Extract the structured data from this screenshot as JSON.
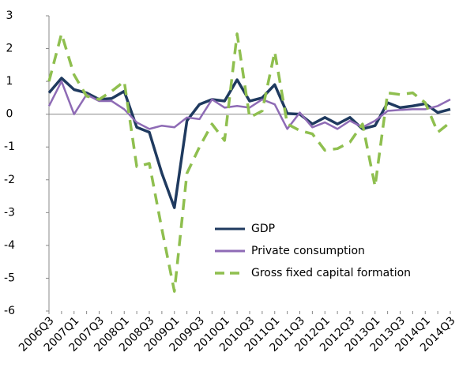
{
  "chart_data": {
    "type": "line",
    "categories": [
      "2006Q3",
      null,
      "2007Q1",
      null,
      "2007Q3",
      null,
      "2008Q1",
      null,
      "2008Q3",
      null,
      "2009Q1",
      null,
      "2009Q3",
      null,
      "2010Q1",
      null,
      "2010Q3",
      null,
      "2011Q1",
      null,
      "2011Q3",
      null,
      "2012Q1",
      null,
      "2012Q3",
      null,
      "2013Q1",
      null,
      "2013Q3",
      null,
      "2014Q1",
      null,
      "2014Q3"
    ],
    "series": [
      {
        "name": "GDP",
        "color": "#1f3a5f",
        "style": "solid",
        "values": [
          0.65,
          1.1,
          0.75,
          0.65,
          0.45,
          0.48,
          0.7,
          -0.4,
          -0.55,
          -1.8,
          -2.85,
          -0.2,
          0.3,
          0.45,
          0.4,
          1.05,
          0.4,
          0.5,
          0.9,
          0.02,
          0.0,
          -0.3,
          -0.1,
          -0.3,
          -0.1,
          -0.45,
          -0.35,
          0.35,
          0.2,
          0.25,
          0.32,
          0.05,
          0.15
        ]
      },
      {
        "name": "Private consumption",
        "color": "#8e6bb5",
        "style": "solid",
        "values": [
          0.25,
          1.0,
          0.0,
          0.6,
          0.4,
          0.4,
          0.15,
          -0.25,
          -0.45,
          -0.35,
          -0.4,
          -0.1,
          -0.15,
          0.45,
          0.2,
          0.25,
          0.2,
          0.45,
          0.3,
          -0.45,
          0.05,
          -0.4,
          -0.25,
          -0.45,
          -0.2,
          -0.4,
          -0.2,
          0.1,
          0.13,
          0.15,
          0.15,
          0.25,
          0.45
        ]
      },
      {
        "name": "Gross fixed capital formation",
        "color": "#8fbf4f",
        "style": "dashed",
        "values": [
          1.0,
          2.45,
          1.2,
          0.55,
          0.45,
          0.7,
          1.0,
          -1.6,
          -1.5,
          -3.5,
          -5.4,
          -1.8,
          -1.0,
          -0.3,
          -0.8,
          2.45,
          -0.1,
          0.1,
          1.9,
          -0.3,
          -0.5,
          -0.6,
          -1.1,
          -1.05,
          -0.85,
          -0.3,
          -2.2,
          0.65,
          0.6,
          0.65,
          0.35,
          -0.55,
          -0.25
        ]
      }
    ],
    "ylim": [
      -6,
      3
    ],
    "yticks": [
      -6,
      -5,
      -4,
      -3,
      -2,
      -1,
      0,
      1,
      2,
      3
    ],
    "legend": "lower-right"
  }
}
